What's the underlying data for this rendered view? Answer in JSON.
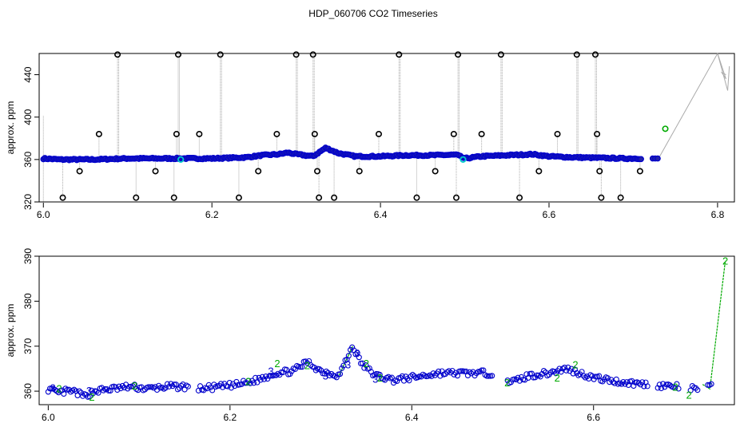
{
  "title": "HDP_060706  CO2 Timeseries",
  "chart_data": [
    {
      "type": "scatter",
      "panel": "top",
      "title": "",
      "xlabel": "",
      "ylabel": "approx. ppm",
      "xlim": [
        5.995,
        6.82
      ],
      "ylim": [
        320,
        460
      ],
      "xticks": [
        6.0,
        6.2,
        6.4,
        6.6,
        6.8
      ],
      "xtick_labels": [
        "6.0",
        "6.2",
        "6.4",
        "6.6",
        "6.8"
      ],
      "yticks": [
        320,
        360,
        400,
        440
      ],
      "ytick_labels": [
        "320",
        "360",
        "400",
        "440"
      ],
      "grid": false,
      "colors": {
        "main": "#0000cc",
        "fill": "#2222aa",
        "outlier": "#000000",
        "highlight": "#00cccc",
        "special": "#00aa00",
        "line": "#aaaaaa"
      },
      "baseline": [
        [
          6.0,
          361
        ],
        [
          6.02,
          360
        ],
        [
          6.04,
          360
        ],
        [
          6.06,
          360
        ],
        [
          6.08,
          360.5
        ],
        [
          6.1,
          361
        ],
        [
          6.12,
          361
        ],
        [
          6.14,
          361
        ],
        [
          6.16,
          361
        ],
        [
          6.18,
          361
        ],
        [
          6.2,
          361
        ],
        [
          6.22,
          361.5
        ],
        [
          6.24,
          362
        ],
        [
          6.26,
          364
        ],
        [
          6.28,
          365
        ],
        [
          6.29,
          366.5
        ],
        [
          6.3,
          365
        ],
        [
          6.31,
          364
        ],
        [
          6.32,
          363
        ],
        [
          6.335,
          371
        ],
        [
          6.35,
          366
        ],
        [
          6.37,
          363
        ],
        [
          6.4,
          363
        ],
        [
          6.43,
          364
        ],
        [
          6.46,
          364
        ],
        [
          6.49,
          364.5
        ],
        [
          6.5,
          361
        ],
        [
          6.52,
          363
        ],
        [
          6.55,
          364
        ],
        [
          6.58,
          365
        ],
        [
          6.6,
          363
        ],
        [
          6.63,
          362
        ],
        [
          6.66,
          361.5
        ],
        [
          6.69,
          361
        ],
        [
          6.71,
          361
        ]
      ],
      "outliers": [
        [
          6.023,
          324
        ],
        [
          6.043,
          349
        ],
        [
          6.066,
          384
        ],
        [
          6.088,
          459
        ],
        [
          6.11,
          324
        ],
        [
          6.133,
          349
        ],
        [
          6.155,
          324
        ],
        [
          6.158,
          384
        ],
        [
          6.16,
          459
        ],
        [
          6.185,
          384
        ],
        [
          6.21,
          459
        ],
        [
          6.232,
          324
        ],
        [
          6.255,
          349
        ],
        [
          6.277,
          384
        ],
        [
          6.3,
          459
        ],
        [
          6.32,
          459
        ],
        [
          6.322,
          384
        ],
        [
          6.325,
          349
        ],
        [
          6.327,
          324
        ],
        [
          6.345,
          324
        ],
        [
          6.375,
          349
        ],
        [
          6.398,
          384
        ],
        [
          6.422,
          459
        ],
        [
          6.443,
          324
        ],
        [
          6.465,
          349
        ],
        [
          6.487,
          384
        ],
        [
          6.49,
          324
        ],
        [
          6.492,
          459
        ],
        [
          6.52,
          384
        ],
        [
          6.543,
          459
        ],
        [
          6.565,
          324
        ],
        [
          6.588,
          349
        ],
        [
          6.61,
          384
        ],
        [
          6.633,
          459
        ],
        [
          6.655,
          459
        ],
        [
          6.657,
          384
        ],
        [
          6.66,
          349
        ],
        [
          6.662,
          324
        ],
        [
          6.685,
          324
        ],
        [
          6.708,
          349
        ]
      ],
      "highlights": [
        [
          6.163,
          360
        ],
        [
          6.498,
          360
        ]
      ],
      "special": [
        [
          6.738,
          389
        ]
      ],
      "tail": [
        [
          6.73,
          361
        ],
        [
          6.8,
          463
        ],
        [
          6.81,
          436
        ],
        [
          6.805,
          442
        ],
        [
          6.81,
          440
        ]
      ]
    },
    {
      "type": "scatter",
      "panel": "bottom",
      "title": "",
      "xlabel": "",
      "ylabel": "approx. ppm",
      "xlim": [
        5.99,
        6.755
      ],
      "ylim": [
        357,
        390
      ],
      "xticks": [
        6.0,
        6.2,
        6.4,
        6.6
      ],
      "xtick_labels": [
        "6.0",
        "6.2",
        "6.4",
        "6.6"
      ],
      "yticks": [
        360,
        370,
        380,
        390
      ],
      "ytick_labels": [
        "360",
        "370",
        "380",
        "390"
      ],
      "grid": false,
      "colors": {
        "circle": "#0000cc",
        "three": "#0000cc",
        "two": "#00aa00",
        "line": "#00aa00"
      },
      "series_points": [
        [
          6.0,
          360.5
        ],
        [
          6.01,
          359.5
        ],
        [
          6.02,
          360
        ],
        [
          6.03,
          359.8
        ],
        [
          6.04,
          358.8
        ],
        [
          6.05,
          360
        ],
        [
          6.07,
          360.5
        ],
        [
          6.09,
          361
        ],
        [
          6.11,
          360.5
        ],
        [
          6.13,
          361
        ],
        [
          6.15,
          361
        ],
        [
          6.165,
          360.5
        ],
        [
          6.19,
          361
        ],
        [
          6.21,
          361.5
        ],
        [
          6.23,
          362.5
        ],
        [
          6.25,
          364
        ],
        [
          6.27,
          364.5
        ],
        [
          6.285,
          366.5
        ],
        [
          6.3,
          364.5
        ],
        [
          6.32,
          363.5
        ],
        [
          6.335,
          370
        ],
        [
          6.345,
          366
        ],
        [
          6.36,
          363.5
        ],
        [
          6.38,
          362.5
        ],
        [
          6.4,
          363
        ],
        [
          6.43,
          364
        ],
        [
          6.46,
          364
        ],
        [
          6.49,
          364
        ],
        [
          6.51,
          362
        ],
        [
          6.53,
          363.5
        ],
        [
          6.55,
          364
        ],
        [
          6.57,
          365
        ],
        [
          6.6,
          363
        ],
        [
          6.63,
          362
        ],
        [
          6.66,
          361.5
        ],
        [
          6.69,
          361
        ],
        [
          6.71,
          360.5
        ],
        [
          6.73,
          361
        ]
      ],
      "gaps": [
        [
          6.155,
          6.165
        ],
        [
          6.49,
          6.505
        ],
        [
          6.66,
          6.67
        ],
        [
          6.715,
          6.725
        ]
      ],
      "threes": [
        [
          6.005,
          360.8
        ],
        [
          6.045,
          360.2
        ],
        [
          6.245,
          364.5
        ],
        [
          6.305,
          363.5
        ],
        [
          6.33,
          366
        ],
        [
          6.34,
          368.5
        ],
        [
          6.36,
          362.8
        ]
      ],
      "twos": [
        [
          6.012,
          360.6
        ],
        [
          6.048,
          358.8
        ],
        [
          6.095,
          361.3
        ],
        [
          6.22,
          362.2
        ],
        [
          6.252,
          366.2
        ],
        [
          6.285,
          365.8
        ],
        [
          6.35,
          366.2
        ],
        [
          6.365,
          363
        ],
        [
          6.505,
          362
        ],
        [
          6.56,
          363
        ],
        [
          6.58,
          366
        ],
        [
          6.69,
          361
        ],
        [
          6.705,
          359.2
        ],
        [
          6.745,
          389
        ]
      ],
      "tail_line": [
        [
          6.72,
          361.5
        ],
        [
          6.728,
          360.5
        ],
        [
          6.745,
          389
        ]
      ]
    }
  ]
}
